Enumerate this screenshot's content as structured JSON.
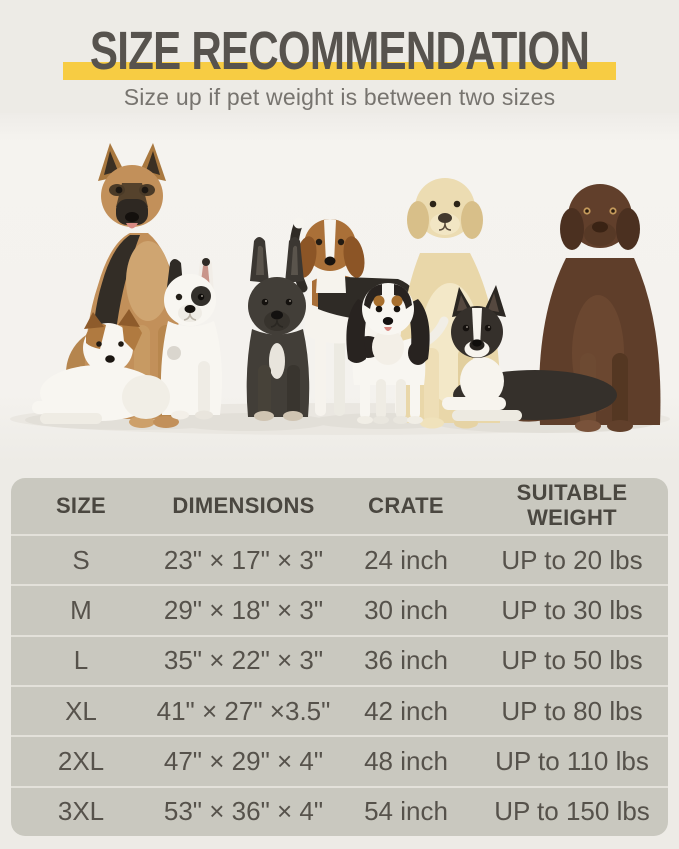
{
  "header": {
    "title": "SIZE RECOMMENDATION",
    "subtitle": "Size up if pet weight is between two sizes"
  },
  "photo": {
    "description": "Studio photo of nine dogs of different breeds and sizes on a white background",
    "breeds": [
      "German Shepherd",
      "Jack Russell Terrier puppy",
      "Pied French Bulldog",
      "Black French Bulldog",
      "Beagle",
      "Cavalier King Charles Spaniel",
      "Golden Labrador Retriever",
      "Boston Terrier",
      "Chocolate Labrador Retriever"
    ]
  },
  "chart_data": {
    "type": "table",
    "title": "SIZE RECOMMENDATION",
    "subtitle": "Size up if pet weight is between two sizes",
    "columns": [
      "SIZE",
      "DIMENSIONS",
      "CRATE",
      "SUITABLE WEIGHT"
    ],
    "rows": [
      [
        "S",
        "23\" × 17\" × 3\"",
        "24 inch",
        "UP to 20 lbs"
      ],
      [
        "M",
        "29\" × 18\" × 3\"",
        "30 inch",
        "UP to 30 lbs"
      ],
      [
        "L",
        "35\" × 22\" × 3\"",
        "36 inch",
        "UP to 50 lbs"
      ],
      [
        "XL",
        "41\" × 27\" ×3.5\"",
        "42 inch",
        "UP to 80 lbs"
      ],
      [
        "2XL",
        "47\" × 29\" × 4\"",
        "48 inch",
        "UP to 110 lbs"
      ],
      [
        "3XL",
        "53\" × 36\" × 4\"",
        "54 inch",
        "UP to 150 lbs"
      ]
    ]
  },
  "colors": {
    "accent_yellow": "#f7cc43",
    "page_background": "#edebe6",
    "table_background": "#c9c8bf",
    "table_divider": "#e3e1da",
    "title_text": "#57534e",
    "subtitle_text": "#77746f"
  }
}
